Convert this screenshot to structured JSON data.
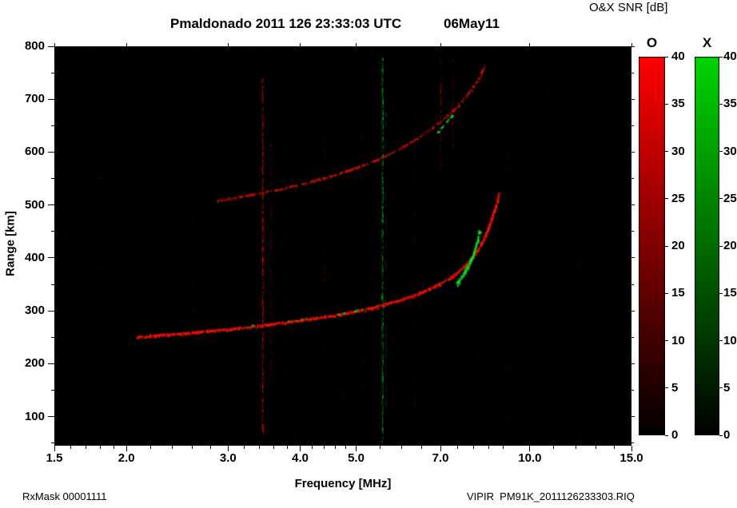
{
  "header": {
    "title": "Pmaldonado 2011 126 23:33:03 UTC",
    "date": "06May11",
    "colorbar_title": "O&X SNR [dB]"
  },
  "footer": {
    "left": "RxMask 00001111",
    "right": "VIPIR  PM91K_2011126233303.RIQ"
  },
  "chart_data": {
    "type": "heatmap",
    "subtype": "ionogram",
    "title": "Pmaldonado 2011 126 23:33:03 UTC",
    "date_label": "06May11",
    "xlabel": "Frequency [MHz]",
    "ylabel": "Range [km]",
    "colorbar_title": "O&X SNR [dB]",
    "x_scale": "log",
    "xlim": [
      1.5,
      15.0
    ],
    "ylim": [
      45,
      800
    ],
    "grid": false,
    "background": "#000000",
    "x_ticks": [
      {
        "label": "1.5",
        "value": 1.5
      },
      {
        "label": "2.0",
        "value": 2.0
      },
      {
        "label": "3.0",
        "value": 3.0
      },
      {
        "label": "4.0",
        "value": 4.0
      },
      {
        "label": "5.0",
        "value": 5.0
      },
      {
        "label": "7.0",
        "value": 7.0
      },
      {
        "label": "10.0",
        "value": 10.0
      },
      {
        "label": "15.0",
        "value": 15.0
      }
    ],
    "x_minor_ticks": [
      1.6,
      1.7,
      1.8,
      1.9,
      2.2,
      2.4,
      2.6,
      2.8,
      3.2,
      3.4,
      3.6,
      3.8,
      4.2,
      4.4,
      4.6,
      4.8,
      5.5,
      6.0,
      6.5,
      7.5,
      8.0,
      8.5,
      9.0,
      11.0,
      12.0,
      13.0,
      14.0
    ],
    "y_ticks": [
      100,
      200,
      300,
      400,
      500,
      600,
      700,
      800
    ],
    "y_minor_ticks": [
      50,
      150,
      250,
      350,
      450,
      550,
      650,
      750
    ],
    "snr_scale": {
      "min": 0,
      "max": 40,
      "ticks": [
        40,
        35,
        30,
        25,
        20,
        15,
        10,
        5,
        0
      ],
      "units": "dB"
    },
    "colorbars": [
      {
        "label": "O",
        "color": "#ff0000"
      },
      {
        "label": "X",
        "color": "#00d400"
      }
    ],
    "series": [
      {
        "name": "F-region O-mode trace first hop",
        "mode": "O",
        "brightness": 0.95,
        "width": 2.4,
        "dropout": 0.12,
        "points": [
          [
            2.08,
            250
          ],
          [
            2.2,
            253
          ],
          [
            2.45,
            257
          ],
          [
            2.7,
            261
          ],
          [
            3.0,
            266
          ],
          [
            3.3,
            271
          ],
          [
            3.6,
            276
          ],
          [
            3.9,
            281
          ],
          [
            4.2,
            286
          ],
          [
            4.5,
            291
          ],
          [
            4.8,
            296
          ],
          [
            5.1,
            302
          ],
          [
            5.4,
            308
          ],
          [
            5.7,
            315
          ],
          [
            6.0,
            322
          ],
          [
            6.3,
            330
          ],
          [
            6.6,
            339
          ],
          [
            6.9,
            349
          ],
          [
            7.2,
            360
          ],
          [
            7.5,
            374
          ],
          [
            7.8,
            391
          ],
          [
            8.05,
            410
          ],
          [
            8.25,
            430
          ],
          [
            8.45,
            455
          ],
          [
            8.6,
            478
          ],
          [
            8.72,
            500
          ],
          [
            8.8,
            515
          ],
          [
            8.84,
            526
          ]
        ]
      },
      {
        "name": "F-region O-mode trace second hop",
        "mode": "O",
        "brightness": 0.55,
        "width": 1.8,
        "dropout": 0.4,
        "points": [
          [
            2.85,
            508
          ],
          [
            3.1,
            515
          ],
          [
            3.4,
            523
          ],
          [
            3.7,
            531
          ],
          [
            4.0,
            540
          ],
          [
            4.3,
            549
          ],
          [
            4.6,
            558
          ],
          [
            4.9,
            568
          ],
          [
            5.2,
            578
          ],
          [
            5.5,
            589
          ],
          [
            5.8,
            601
          ],
          [
            6.1,
            614
          ],
          [
            6.4,
            628
          ],
          [
            6.7,
            643
          ],
          [
            7.0,
            659
          ],
          [
            7.3,
            676
          ],
          [
            7.6,
            696
          ],
          [
            7.9,
            718
          ],
          [
            8.1,
            736
          ],
          [
            8.25,
            752
          ],
          [
            8.35,
            765
          ]
        ]
      },
      {
        "name": "X-mode cusp",
        "mode": "X",
        "brightness": 1.0,
        "width": 3.0,
        "dropout": 0.1,
        "points": [
          [
            7.45,
            350
          ],
          [
            7.65,
            368
          ],
          [
            7.85,
            390
          ],
          [
            8.0,
            412
          ],
          [
            8.1,
            432
          ],
          [
            8.18,
            452
          ]
        ]
      },
      {
        "name": "X-mode second hop patch",
        "mode": "X",
        "brightness": 0.8,
        "width": 1.8,
        "dropout": 0.55,
        "points": [
          [
            6.8,
            628
          ],
          [
            7.0,
            645
          ],
          [
            7.2,
            660
          ],
          [
            7.35,
            672
          ]
        ]
      },
      {
        "name": "X-mode sparse first hop",
        "mode": "X",
        "brightness": 0.7,
        "width": 1.2,
        "dropout": 0.93,
        "points": [
          [
            3.2,
            272
          ],
          [
            3.6,
            277
          ],
          [
            4.1,
            286
          ],
          [
            4.7,
            295
          ],
          [
            5.3,
            307
          ]
        ]
      }
    ],
    "interference_lines": [
      {
        "f": 3.44,
        "mode": "O",
        "r0": 70,
        "r1": 740,
        "intensity": 0.5
      },
      {
        "f": 3.55,
        "mode": "O",
        "r0": 150,
        "r1": 620,
        "intensity": 0.2
      },
      {
        "f": 5.55,
        "mode": "X",
        "r0": 50,
        "r1": 780,
        "intensity": 0.45
      },
      {
        "f": 5.62,
        "mode": "X",
        "r0": 100,
        "r1": 700,
        "intensity": 0.15
      },
      {
        "f": 7.0,
        "mode": "O",
        "r0": 560,
        "r1": 780,
        "intensity": 0.28
      },
      {
        "f": 7.35,
        "mode": "O",
        "r0": 600,
        "r1": 780,
        "intensity": 0.2
      },
      {
        "f": 4.4,
        "mode": "O",
        "r0": 100,
        "r1": 680,
        "intensity": 0.09
      },
      {
        "f": 6.3,
        "mode": "O",
        "r0": 120,
        "r1": 700,
        "intensity": 0.08
      },
      {
        "f": 2.6,
        "mode": "O",
        "r0": 140,
        "r1": 600,
        "intensity": 0.06
      },
      {
        "f": 5.1,
        "mode": "O",
        "r0": 150,
        "r1": 650,
        "intensity": 0.07
      }
    ]
  }
}
